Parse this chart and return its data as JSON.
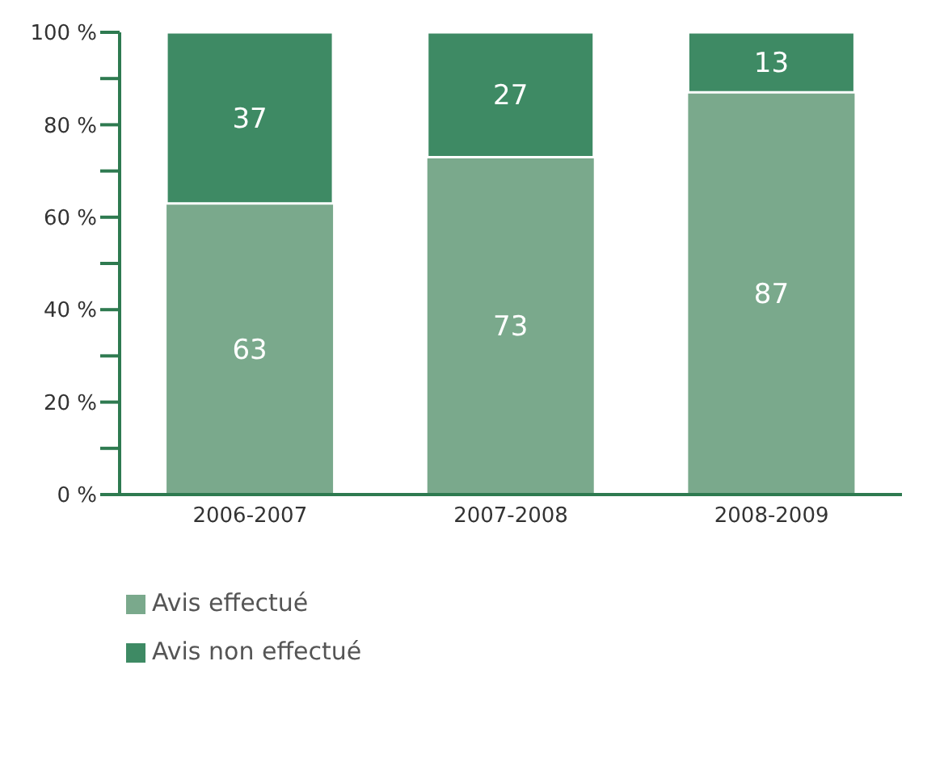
{
  "chart_data": {
    "type": "bar",
    "stacked": true,
    "categories": [
      "2006-2007",
      "2007-2008",
      "2008-2009"
    ],
    "series": [
      {
        "name": "Avis effectué",
        "color": "#7aa98c",
        "values": [
          63,
          73,
          87
        ]
      },
      {
        "name": "Avis non effectué",
        "color": "#3e8a64",
        "values": [
          37,
          27,
          13
        ]
      }
    ],
    "ylim": [
      0,
      100
    ],
    "yticks": [
      {
        "value": 0,
        "label": "0 %"
      },
      {
        "value": 10,
        "label": null
      },
      {
        "value": 20,
        "label": "20 %"
      },
      {
        "value": 30,
        "label": null
      },
      {
        "value": 40,
        "label": "40 %"
      },
      {
        "value": 50,
        "label": null
      },
      {
        "value": 60,
        "label": "60 %"
      },
      {
        "value": 70,
        "label": null
      },
      {
        "value": 80,
        "label": "80 %"
      },
      {
        "value": 90,
        "label": null
      },
      {
        "value": 100,
        "label": "100 %"
      }
    ],
    "data_labels": true,
    "grid": false,
    "legend": "bottom left"
  }
}
